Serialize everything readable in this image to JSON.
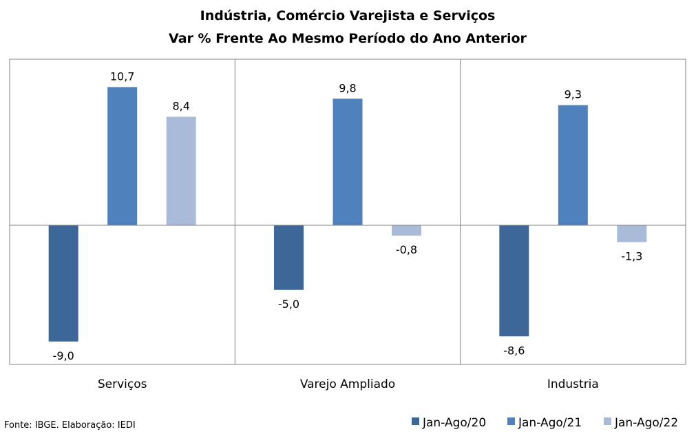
{
  "chart_data": {
    "type": "bar",
    "title": "Indústria, Comércio Varejista e Serviços",
    "subtitle": "Var % Frente Ao Mesmo Período do Ano Anterior",
    "categories": [
      "Serviços",
      "Varejo Ampliado",
      "Industria"
    ],
    "series": [
      {
        "name": "Jan-Ago/20",
        "color": "#3d6699",
        "values": [
          -9.0,
          -5.0,
          -8.6
        ],
        "labels": [
          "-9,0",
          "-5,0",
          "-8,6"
        ]
      },
      {
        "name": "Jan-Ago/21",
        "color": "#4f81bd",
        "values": [
          10.7,
          9.8,
          9.3
        ],
        "labels": [
          "10,7",
          "9,8",
          "9,3"
        ]
      },
      {
        "name": "Jan-Ago/22",
        "color": "#a9bbd9",
        "values": [
          8.4,
          -0.8,
          -1.3
        ],
        "labels": [
          "8,4",
          "-0,8",
          "-1,3"
        ]
      }
    ],
    "ylim": [
      -11,
      13
    ],
    "grid": false,
    "legend": "bottom-right",
    "source": "Fonte: IBGE. Elaboração: IEDI"
  }
}
